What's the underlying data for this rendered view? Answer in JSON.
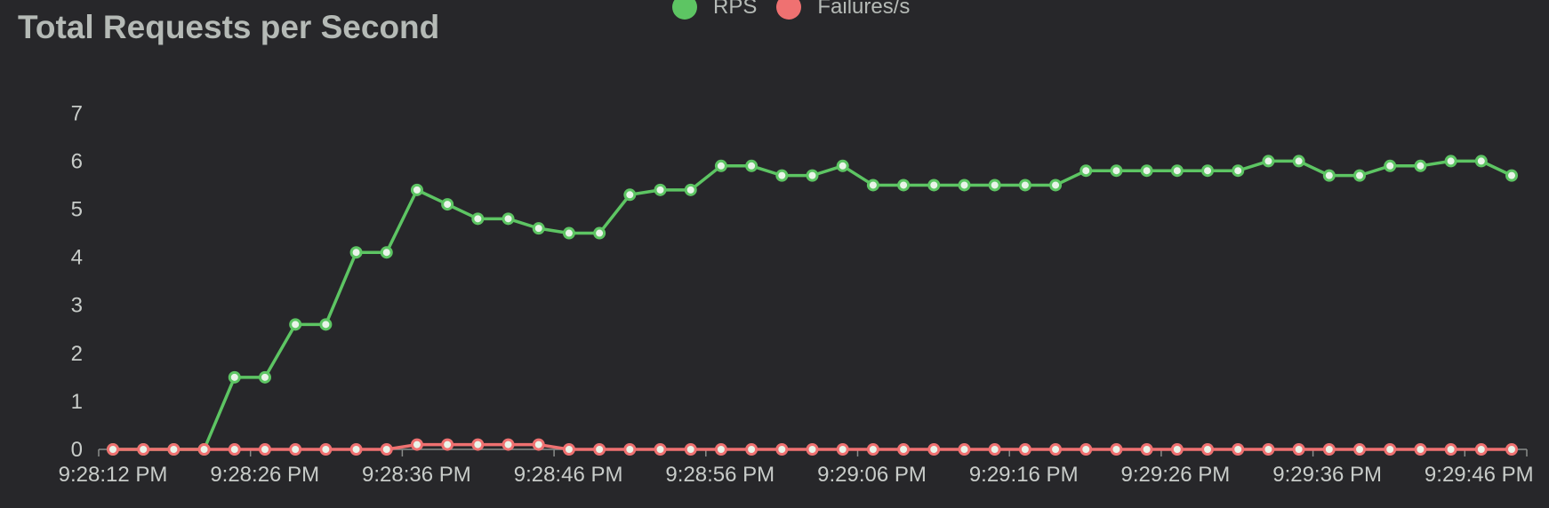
{
  "chart_data": {
    "type": "line",
    "title": "Total Requests per Second",
    "xlabel": "",
    "ylabel": "",
    "ylim": [
      0,
      7
    ],
    "yticks": [
      0,
      1,
      2,
      3,
      4,
      5,
      6,
      7
    ],
    "xtick_labels": [
      "9:28:12 PM",
      "9:28:26 PM",
      "9:28:36 PM",
      "9:28:46 PM",
      "9:28:56 PM",
      "9:29:06 PM",
      "9:29:16 PM",
      "9:29:26 PM",
      "9:29:36 PM",
      "9:29:46 PM"
    ],
    "grid": false,
    "legend_position": "top-center",
    "series": [
      {
        "name": "RPS",
        "color": "#5dc563",
        "values": [
          0,
          0,
          0,
          0,
          1.5,
          1.5,
          2.6,
          2.6,
          4.1,
          4.1,
          5.4,
          5.1,
          4.8,
          4.8,
          4.6,
          4.5,
          4.5,
          5.3,
          5.4,
          5.4,
          5.9,
          5.9,
          5.7,
          5.7,
          5.9,
          5.5,
          5.5,
          5.5,
          5.5,
          5.5,
          5.5,
          5.5,
          5.8,
          5.8,
          5.8,
          5.8,
          5.8,
          5.8,
          6.0,
          6.0,
          5.7,
          5.7,
          5.9,
          5.9,
          6.0,
          6.0,
          5.7
        ]
      },
      {
        "name": "Failures/s",
        "color": "#ef7171",
        "values": [
          0,
          0,
          0,
          0,
          0,
          0,
          0,
          0,
          0,
          0,
          0.1,
          0.1,
          0.1,
          0.1,
          0.1,
          0,
          0,
          0,
          0,
          0,
          0,
          0,
          0,
          0,
          0,
          0,
          0,
          0,
          0,
          0,
          0,
          0,
          0,
          0,
          0,
          0,
          0,
          0,
          0,
          0,
          0,
          0,
          0,
          0,
          0,
          0,
          0
        ]
      }
    ]
  }
}
